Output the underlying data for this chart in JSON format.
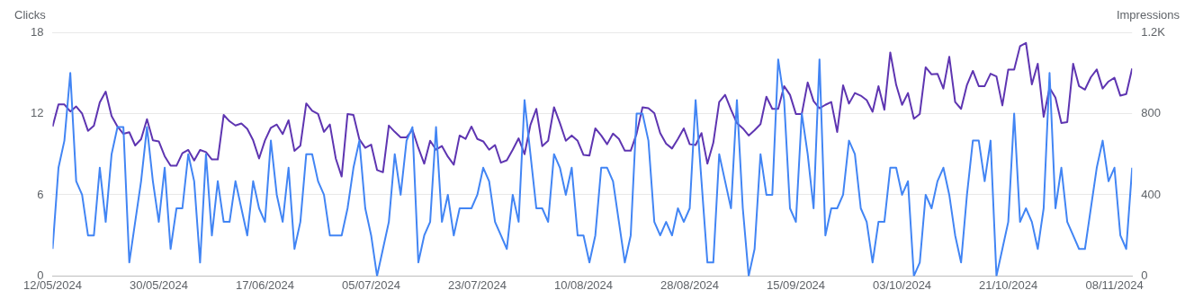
{
  "chart_data": {
    "type": "line",
    "ylabel": "Clicks",
    "y2label": "Impressions",
    "x": [
      "2024-05-12",
      "2024-05-13",
      "2024-05-14",
      "2024-05-15",
      "2024-05-16",
      "2024-05-17",
      "2024-05-18",
      "2024-05-19",
      "2024-05-20",
      "2024-05-21",
      "2024-05-22",
      "2024-05-23",
      "2024-05-24",
      "2024-05-25",
      "2024-05-26",
      "2024-05-27",
      "2024-05-28",
      "2024-05-29",
      "2024-05-30",
      "2024-05-31",
      "2024-06-01",
      "2024-06-02",
      "2024-06-03",
      "2024-06-04",
      "2024-06-05",
      "2024-06-06",
      "2024-06-07",
      "2024-06-08",
      "2024-06-09",
      "2024-06-10",
      "2024-06-11",
      "2024-06-12",
      "2024-06-13",
      "2024-06-14",
      "2024-06-15",
      "2024-06-16",
      "2024-06-17",
      "2024-06-18",
      "2024-06-19",
      "2024-06-20",
      "2024-06-21",
      "2024-06-22",
      "2024-06-23",
      "2024-06-24",
      "2024-06-25",
      "2024-06-26",
      "2024-06-27",
      "2024-06-28",
      "2024-06-29",
      "2024-06-30",
      "2024-07-01",
      "2024-07-02",
      "2024-07-03",
      "2024-07-04",
      "2024-07-05",
      "2024-07-06",
      "2024-07-07",
      "2024-07-08",
      "2024-07-09",
      "2024-07-10",
      "2024-07-11",
      "2024-07-12",
      "2024-07-13",
      "2024-07-14",
      "2024-07-15",
      "2024-07-16",
      "2024-07-17",
      "2024-07-18",
      "2024-07-19",
      "2024-07-20",
      "2024-07-21",
      "2024-07-22",
      "2024-07-23",
      "2024-07-24",
      "2024-07-25",
      "2024-07-26",
      "2024-07-27",
      "2024-07-28",
      "2024-07-29",
      "2024-07-30",
      "2024-07-31",
      "2024-08-01",
      "2024-08-02",
      "2024-08-03",
      "2024-08-04",
      "2024-08-05",
      "2024-08-06",
      "2024-08-07",
      "2024-08-08",
      "2024-08-09",
      "2024-08-10",
      "2024-08-11",
      "2024-08-12",
      "2024-08-13",
      "2024-08-14",
      "2024-08-15",
      "2024-08-16",
      "2024-08-17",
      "2024-08-18",
      "2024-08-19",
      "2024-08-20",
      "2024-08-21",
      "2024-08-22",
      "2024-08-23",
      "2024-08-24",
      "2024-08-25",
      "2024-08-26",
      "2024-08-27",
      "2024-08-28",
      "2024-08-29",
      "2024-08-30",
      "2024-08-31",
      "2024-09-01",
      "2024-09-02",
      "2024-09-03",
      "2024-09-04",
      "2024-09-05",
      "2024-09-06",
      "2024-09-07",
      "2024-09-08",
      "2024-09-09",
      "2024-09-10",
      "2024-09-11",
      "2024-09-12",
      "2024-09-13",
      "2024-09-14",
      "2024-09-15",
      "2024-09-16",
      "2024-09-17",
      "2024-09-18",
      "2024-09-19",
      "2024-09-20",
      "2024-09-21",
      "2024-09-22",
      "2024-09-23",
      "2024-09-24",
      "2024-09-25",
      "2024-09-26",
      "2024-09-27",
      "2024-09-28",
      "2024-09-29",
      "2024-09-30",
      "2024-10-01",
      "2024-10-02",
      "2024-10-03",
      "2024-10-04",
      "2024-10-05",
      "2024-10-06",
      "2024-10-07",
      "2024-10-08",
      "2024-10-09",
      "2024-10-10",
      "2024-10-11",
      "2024-10-12",
      "2024-10-13",
      "2024-10-14",
      "2024-10-15",
      "2024-10-16",
      "2024-10-17",
      "2024-10-18",
      "2024-10-19",
      "2024-10-20",
      "2024-10-21",
      "2024-10-22",
      "2024-10-23",
      "2024-10-24",
      "2024-10-25",
      "2024-10-26",
      "2024-10-27",
      "2024-10-28",
      "2024-10-29",
      "2024-10-30",
      "2024-10-31",
      "2024-11-01",
      "2024-11-02",
      "2024-11-03",
      "2024-11-04",
      "2024-11-05",
      "2024-11-06",
      "2024-11-07",
      "2024-11-08",
      "2024-11-09",
      "2024-11-10",
      "2024-11-11"
    ],
    "series": [
      {
        "color": "#4285f4",
        "values": [
          2,
          8,
          10,
          15,
          7,
          6,
          3,
          3,
          8,
          4,
          9,
          11,
          11,
          1,
          4,
          7,
          11,
          7,
          4,
          8,
          2,
          5,
          5,
          9,
          7,
          1,
          9,
          3,
          7,
          4,
          4,
          7,
          5,
          3,
          7,
          5,
          4,
          10,
          6,
          4,
          8,
          2,
          4,
          9,
          9,
          7,
          6,
          3,
          3,
          3,
          5,
          8,
          10,
          5,
          3,
          0,
          2,
          4,
          9,
          6,
          10,
          11,
          1,
          3,
          4,
          11,
          4,
          6,
          3,
          5,
          5,
          5,
          6,
          8,
          7,
          4,
          3,
          2,
          6,
          4,
          13,
          9,
          5,
          5,
          4,
          9,
          8,
          6,
          8,
          3,
          3,
          1,
          3,
          8,
          8,
          7,
          4,
          1,
          3,
          12,
          12,
          10,
          4,
          3,
          4,
          3,
          5,
          4,
          5,
          13,
          7,
          1,
          1,
          9,
          7,
          5,
          13,
          5,
          0,
          2,
          9,
          6,
          6,
          16,
          13,
          5,
          4,
          12,
          9,
          5,
          16,
          3,
          5,
          5,
          6,
          10,
          9,
          5,
          4,
          1,
          4,
          4,
          8,
          8,
          6,
          7,
          0,
          1,
          6,
          5,
          7,
          8,
          6,
          3,
          1,
          6,
          10,
          10,
          7,
          10,
          0,
          2,
          4,
          12,
          4,
          5,
          4,
          2,
          5,
          15,
          5,
          8,
          4,
          3,
          2,
          2,
          5,
          8,
          10,
          7,
          8,
          3,
          2,
          8
        ]
      },
      {
        "color": "#5e35b1",
        "axis": "y2",
        "values": [
          736,
          845,
          845,
          810,
          835,
          800,
          715,
          740,
          855,
          908,
          788,
          736,
          700,
          708,
          643,
          674,
          772,
          668,
          663,
          590,
          543,
          543,
          605,
          621,
          569,
          621,
          610,
          574,
          574,
          793,
          762,
          741,
          751,
          725,
          668,
          579,
          668,
          730,
          746,
          699,
          767,
          616,
          642,
          850,
          814,
          798,
          710,
          746,
          579,
          490,
          798,
          793,
          673,
          631,
          647,
          522,
          511,
          741,
          710,
          683,
          683,
          720,
          631,
          553,
          666,
          622,
          640,
          588,
          548,
          692,
          675,
          736,
          675,
          663,
          622,
          645,
          558,
          570,
          622,
          678,
          600,
          744,
          823,
          640,
          666,
          831,
          753,
          666,
          692,
          666,
          596,
          593,
          727,
          692,
          649,
          701,
          675,
          617,
          617,
          701,
          831,
          826,
          802,
          704,
          652,
          628,
          675,
          727,
          649,
          645,
          704,
          553,
          656,
          857,
          892,
          819,
          753,
          727,
          692,
          718,
          748,
          883,
          823,
          823,
          935,
          892,
          798,
          798,
          953,
          861,
          826,
          843,
          857,
          709,
          939,
          849,
          901,
          888,
          866,
          809,
          935,
          819,
          1101,
          941,
          843,
          901,
          774,
          798,
          1028,
          993,
          996,
          923,
          1080,
          857,
          823,
          941,
          1010,
          935,
          935,
          996,
          983,
          840,
          1017,
          1017,
          1132,
          1148,
          944,
          1045,
          784,
          927,
          878,
          753,
          758,
          1045,
          935,
          918,
          979,
          1017,
          923,
          958,
          976,
          888,
          896,
          1022
        ]
      }
    ],
    "xlim": [
      "2024-05-12",
      "2024-11-11"
    ],
    "xticks": [
      {
        "value": "2024-05-12",
        "label": "12/05/2024"
      },
      {
        "value": "2024-05-30",
        "label": "30/05/2024"
      },
      {
        "value": "2024-06-17",
        "label": "17/06/2024"
      },
      {
        "value": "2024-07-05",
        "label": "05/07/2024"
      },
      {
        "value": "2024-07-23",
        "label": "23/07/2024"
      },
      {
        "value": "2024-08-10",
        "label": "10/08/2024"
      },
      {
        "value": "2024-08-28",
        "label": "28/08/2024"
      },
      {
        "value": "2024-09-15",
        "label": "15/09/2024"
      },
      {
        "value": "2024-10-03",
        "label": "03/10/2024"
      },
      {
        "value": "2024-10-21",
        "label": "21/10/2024"
      },
      {
        "value": "2024-11-08",
        "label": "08/11/2024"
      }
    ],
    "ylim": [
      0,
      18
    ],
    "yticks": [
      0,
      6,
      12,
      18
    ],
    "y2lim": [
      0,
      1200
    ],
    "y2ticks": [
      0,
      400,
      800,
      {
        "value": 1200,
        "label": "1.2K"
      }
    ],
    "grid": "y",
    "legend": false,
    "marker": "none",
    "line_style": "solid"
  }
}
